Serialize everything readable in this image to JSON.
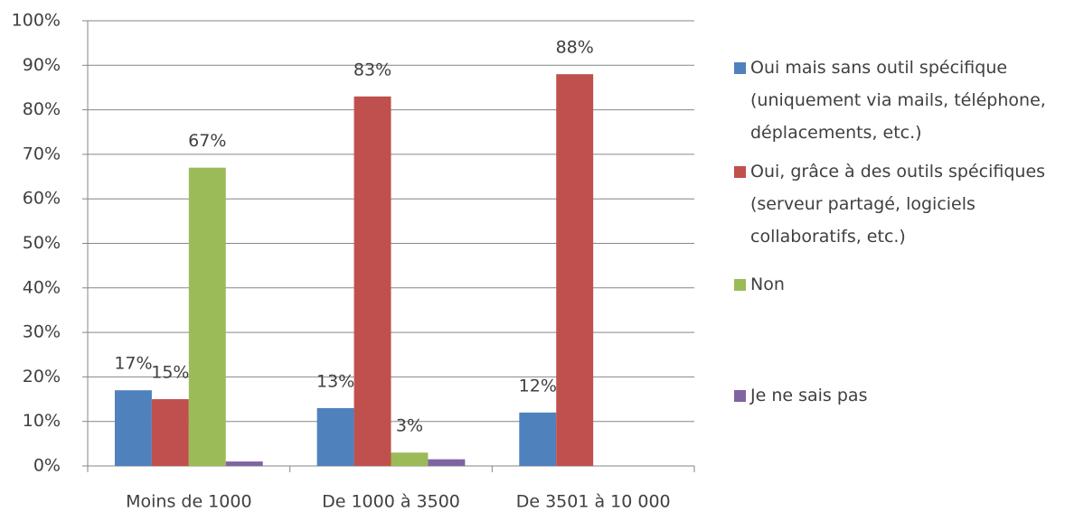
{
  "chart_data": {
    "type": "bar",
    "categories": [
      "Moins de 1000",
      "De 1000 à 3500",
      "De 3501 à 10 000"
    ],
    "series": [
      {
        "name": "Oui mais sans outil spécifique (uniquement via mails, téléphone, déplacements, etc.)",
        "color": "#4f81bd",
        "values": [
          17,
          13,
          12
        ],
        "value_labels": [
          "17%",
          "13%",
          "12%"
        ]
      },
      {
        "name": "Oui, grâce à des outils spécifiques (serveur partagé, logiciels collaboratifs, etc.)",
        "color": "#c0504d",
        "values": [
          15,
          83,
          88
        ],
        "value_labels": [
          "15%",
          "83%",
          "88%"
        ]
      },
      {
        "name": "Non",
        "color": "#9bbb59",
        "values": [
          67,
          3,
          null
        ],
        "value_labels": [
          "67%",
          "3%",
          null
        ]
      },
      {
        "name": "Je ne sais pas",
        "color": "#8064a2",
        "values": [
          1,
          1.5,
          null
        ],
        "value_labels": [
          null,
          null,
          null
        ]
      }
    ],
    "ylim": [
      0,
      100
    ],
    "yticks": [
      {
        "value": 0,
        "label": "0%"
      },
      {
        "value": 10,
        "label": "10%"
      },
      {
        "value": 20,
        "label": "20%"
      },
      {
        "value": 30,
        "label": "30%"
      },
      {
        "value": 40,
        "label": "40%"
      },
      {
        "value": 50,
        "label": "50%"
      },
      {
        "value": 60,
        "label": "60%"
      },
      {
        "value": 70,
        "label": "70%"
      },
      {
        "value": 80,
        "label": "80%"
      },
      {
        "value": 90,
        "label": "90%"
      },
      {
        "value": 100,
        "label": "100%"
      }
    ],
    "grid": true,
    "legend": "right"
  }
}
